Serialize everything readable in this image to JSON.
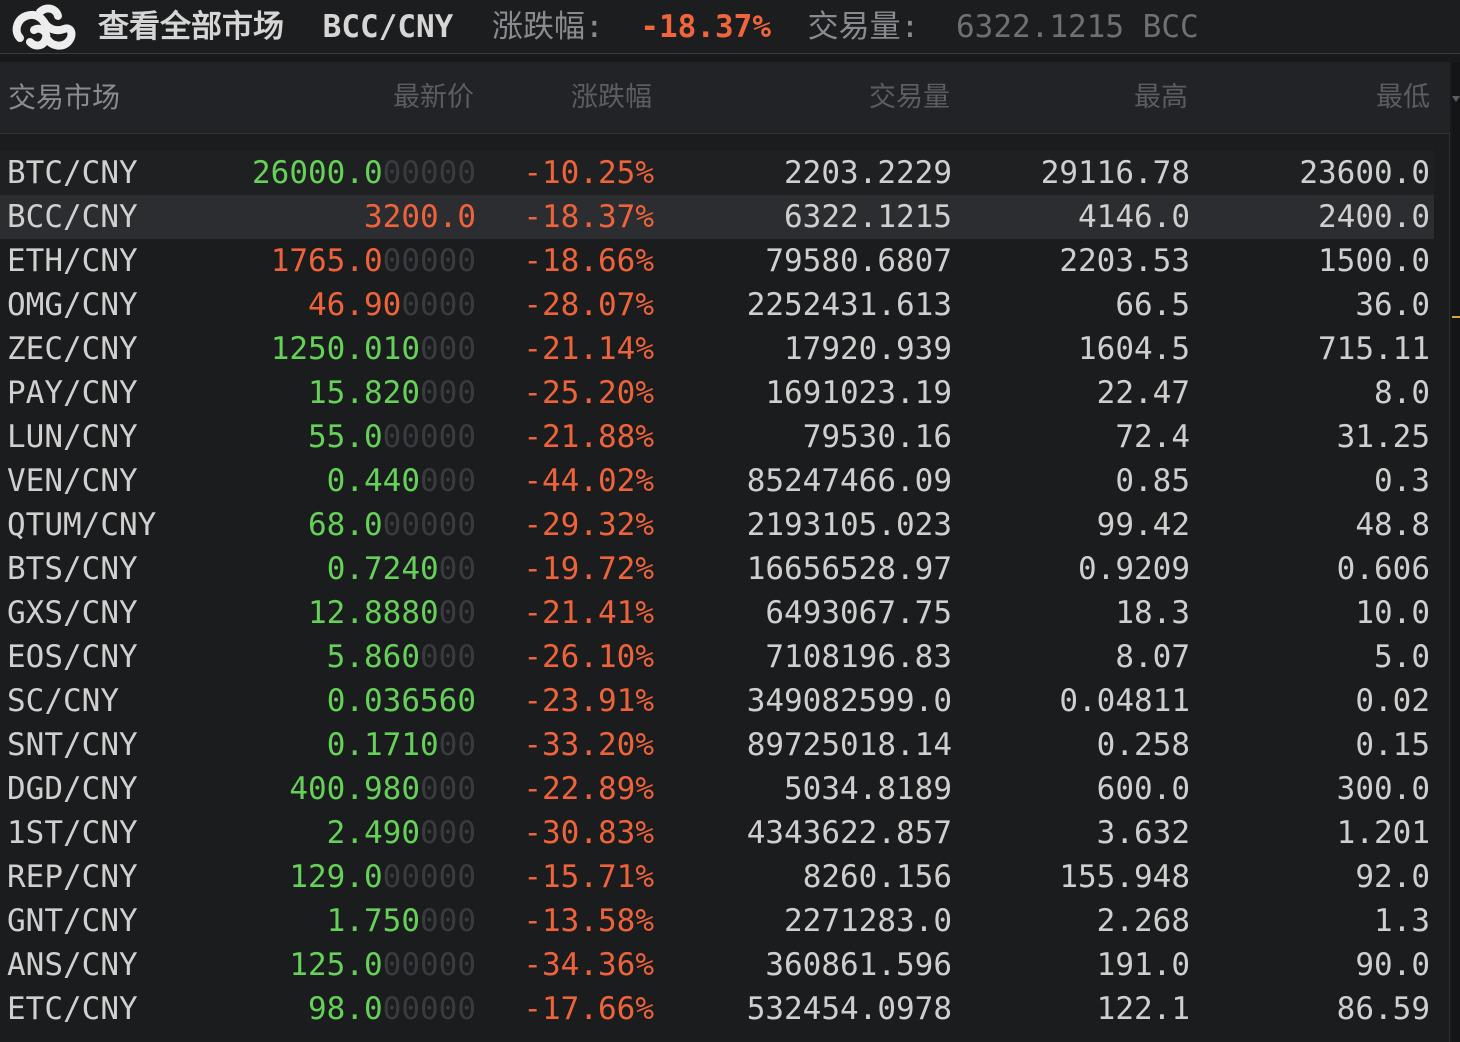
{
  "topbar": {
    "logo_icon": "link-chain-logo-icon",
    "view_all_markets": "查看全部市场",
    "pair": "BCC/CNY",
    "change_label": "涨跌幅:",
    "change_value": "-18.37%",
    "volume_label": "交易量:",
    "volume_value": "6322.1215 BCC"
  },
  "colors": {
    "up": "#66d158",
    "down": "#ef633a",
    "background": "#18191b",
    "selected_row": "#2c2d30"
  },
  "table": {
    "headers": {
      "market": "交易市场",
      "price": "最新价",
      "change": "涨跌幅",
      "volume": "交易量",
      "high": "最高",
      "low": "最低"
    },
    "selected_index": 1,
    "rows": [
      {
        "market": "BTC/CNY",
        "price": "26000.0",
        "price_pad": "00000",
        "dir": "up",
        "change": "-10.25%",
        "volume": "2203.2229",
        "high": "29116.78",
        "low": "23600.0"
      },
      {
        "market": "BCC/CNY",
        "price": "3200.0",
        "price_pad": "",
        "dir": "down",
        "change": "-18.37%",
        "volume": "6322.1215",
        "high": "4146.0",
        "low": "2400.0"
      },
      {
        "market": "ETH/CNY",
        "price": "1765.0",
        "price_pad": "00000",
        "dir": "down",
        "change": "-18.66%",
        "volume": "79580.6807",
        "high": "2203.53",
        "low": "1500.0"
      },
      {
        "market": "OMG/CNY",
        "price": "46.90",
        "price_pad": "0000",
        "dir": "down",
        "change": "-28.07%",
        "volume": "2252431.613",
        "high": "66.5",
        "low": "36.0"
      },
      {
        "market": "ZEC/CNY",
        "price": "1250.010",
        "price_pad": "000",
        "dir": "up",
        "change": "-21.14%",
        "volume": "17920.939",
        "high": "1604.5",
        "low": "715.11"
      },
      {
        "market": "PAY/CNY",
        "price": "15.820",
        "price_pad": "000",
        "dir": "up",
        "change": "-25.20%",
        "volume": "1691023.19",
        "high": "22.47",
        "low": "8.0"
      },
      {
        "market": "LUN/CNY",
        "price": "55.0",
        "price_pad": "00000",
        "dir": "up",
        "change": "-21.88%",
        "volume": "79530.16",
        "high": "72.4",
        "low": "31.25"
      },
      {
        "market": "VEN/CNY",
        "price": "0.440",
        "price_pad": "000",
        "dir": "up",
        "change": "-44.02%",
        "volume": "85247466.09",
        "high": "0.85",
        "low": "0.3"
      },
      {
        "market": "QTUM/CNY",
        "price": "68.0",
        "price_pad": "00000",
        "dir": "up",
        "change": "-29.32%",
        "volume": "2193105.023",
        "high": "99.42",
        "low": "48.8"
      },
      {
        "market": "BTS/CNY",
        "price": "0.7240",
        "price_pad": "00",
        "dir": "up",
        "change": "-19.72%",
        "volume": "16656528.97",
        "high": "0.9209",
        "low": "0.606"
      },
      {
        "market": "GXS/CNY",
        "price": "12.8880",
        "price_pad": "00",
        "dir": "up",
        "change": "-21.41%",
        "volume": "6493067.75",
        "high": "18.3",
        "low": "10.0"
      },
      {
        "market": "EOS/CNY",
        "price": "5.860",
        "price_pad": "000",
        "dir": "up",
        "change": "-26.10%",
        "volume": "7108196.83",
        "high": "8.07",
        "low": "5.0"
      },
      {
        "market": "SC/CNY",
        "price": "0.036560",
        "price_pad": "",
        "dir": "up",
        "change": "-23.91%",
        "volume": "349082599.0",
        "high": "0.04811",
        "low": "0.02"
      },
      {
        "market": "SNT/CNY",
        "price": "0.1710",
        "price_pad": "00",
        "dir": "up",
        "change": "-33.20%",
        "volume": "89725018.14",
        "high": "0.258",
        "low": "0.15"
      },
      {
        "market": "DGD/CNY",
        "price": "400.980",
        "price_pad": "000",
        "dir": "up",
        "change": "-22.89%",
        "volume": "5034.8189",
        "high": "600.0",
        "low": "300.0"
      },
      {
        "market": "1ST/CNY",
        "price": "2.490",
        "price_pad": "000",
        "dir": "up",
        "change": "-30.83%",
        "volume": "4343622.857",
        "high": "3.632",
        "low": "1.201"
      },
      {
        "market": "REP/CNY",
        "price": "129.0",
        "price_pad": "00000",
        "dir": "up",
        "change": "-15.71%",
        "volume": "8260.156",
        "high": "155.948",
        "low": "92.0"
      },
      {
        "market": "GNT/CNY",
        "price": "1.750",
        "price_pad": "000",
        "dir": "up",
        "change": "-13.58%",
        "volume": "2271283.0",
        "high": "2.268",
        "low": "1.3"
      },
      {
        "market": "ANS/CNY",
        "price": "125.0",
        "price_pad": "00000",
        "dir": "up",
        "change": "-34.36%",
        "volume": "360861.596",
        "high": "191.0",
        "low": "90.0"
      },
      {
        "market": "ETC/CNY",
        "price": "98.0",
        "price_pad": "00000",
        "dir": "up",
        "change": "-17.66%",
        "volume": "532454.0978",
        "high": "122.1",
        "low": "86.59"
      }
    ]
  }
}
